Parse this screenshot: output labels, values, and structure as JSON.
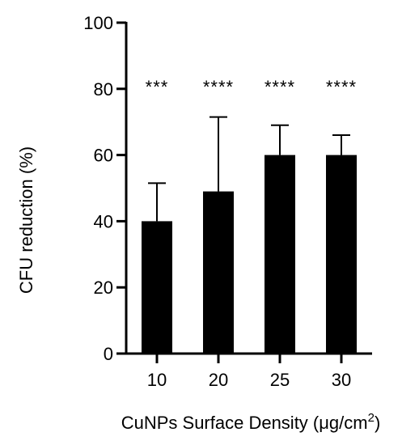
{
  "chart_data": {
    "type": "bar",
    "title": "",
    "xlabel": "CuNPs Surface Density (μg/cm",
    "xlabel_superscript": "2",
    "xlabel_suffix": ")",
    "ylabel": "CFU reduction (%)",
    "ylim": [
      0,
      100
    ],
    "yticks": [
      0,
      20,
      40,
      60,
      80,
      100
    ],
    "grid": false,
    "bar_color": "#000000",
    "categories": [
      "10",
      "20",
      "25",
      "30"
    ],
    "values": [
      40,
      49,
      60,
      60
    ],
    "error_upper": [
      51.5,
      71.5,
      69,
      66
    ],
    "significance": [
      "***",
      "****",
      "****",
      "****"
    ]
  }
}
